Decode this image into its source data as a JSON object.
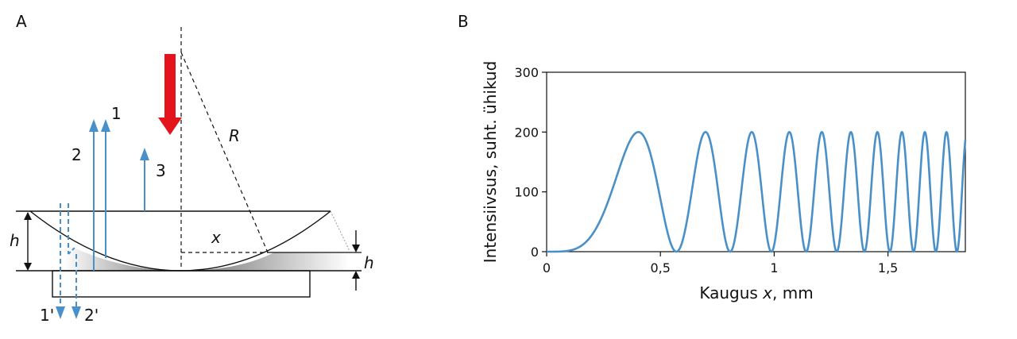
{
  "panels": {
    "a_label": "A",
    "b_label": "B"
  },
  "diagram": {
    "ray_labels": {
      "ray1": "1",
      "ray2": "2",
      "ray3": "3",
      "ray1_transmitted": "1'",
      "ray2_transmitted": "2'"
    },
    "symbols": {
      "radius": "R",
      "distance": "x",
      "height_left": "h",
      "height_right": "h"
    },
    "colors": {
      "incident_arrow": "#e3141b",
      "rays": "#4a90c8",
      "lines": "#111111"
    }
  },
  "chart_data": {
    "type": "line",
    "title": "",
    "xlabel_prefix": "Kaugus ",
    "xlabel_var": "x",
    "xlabel_suffix": ", mm",
    "ylabel": "Intensiivsus, suht. ühikud",
    "xlim": [
      0,
      1.84
    ],
    "ylim": [
      0,
      300
    ],
    "x_ticks": [
      0,
      0.5,
      1,
      1.5
    ],
    "x_tick_labels": [
      "0",
      "0,5",
      "1",
      "1,5"
    ],
    "y_ticks": [
      0,
      100,
      200,
      300
    ],
    "y_tick_labels": [
      "0",
      "100",
      "200",
      "300"
    ],
    "grid": false,
    "series": [
      {
        "name": "",
        "function": "intensity = 200 * sin^2(pi * x^2 / 0.325)",
        "amplitude": 200,
        "period_x_squared": 0.325,
        "x_start": 0,
        "x_end": 1.84,
        "color": "#4a90c8"
      }
    ]
  }
}
